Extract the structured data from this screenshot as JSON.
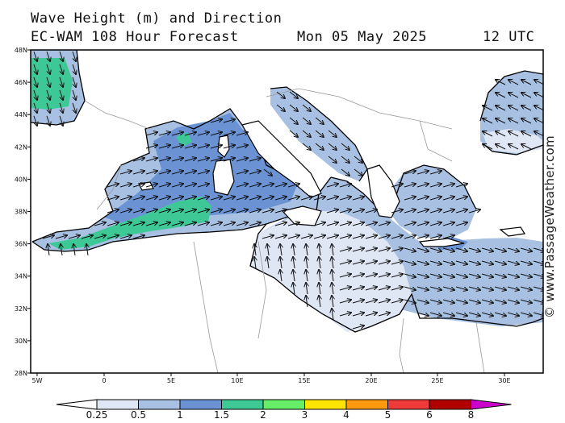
{
  "header": {
    "line1": "Wave Height (m) and Direction",
    "model": "EC-WAM 108 Hour Forecast",
    "date": "Mon 05 May 2025",
    "time": "12 UTC"
  },
  "credit": "© www.PassageWeather.com",
  "axes": {
    "lat_labels": [
      "48N",
      "46N",
      "44N",
      "42N",
      "40N",
      "38N",
      "36N",
      "34N",
      "32N",
      "30N",
      "28N"
    ],
    "lon_labels": [
      "5W",
      "0",
      "5E",
      "10E",
      "15E",
      "20E",
      "25E",
      "30E"
    ]
  },
  "legend": {
    "ticks": [
      "0.25",
      "0.5",
      "1",
      "1.5",
      "2",
      "3",
      "4",
      "5",
      "6",
      "8"
    ],
    "colors": [
      "#ffffff",
      "#dfe6f4",
      "#a8c0e2",
      "#6b93d4",
      "#3dc896",
      "#66ee66",
      "#ffe400",
      "#ff9a10",
      "#ee3a3a",
      "#b00000",
      "#cc00cc"
    ]
  },
  "colors": {
    "sea_calm": "#dfe6f4",
    "sea_low": "#a8c0e2",
    "sea_mid": "#6b93d4",
    "sea_high": "#3dc896",
    "land": "#ffffff",
    "coast": "#000000",
    "border": "#999999"
  }
}
